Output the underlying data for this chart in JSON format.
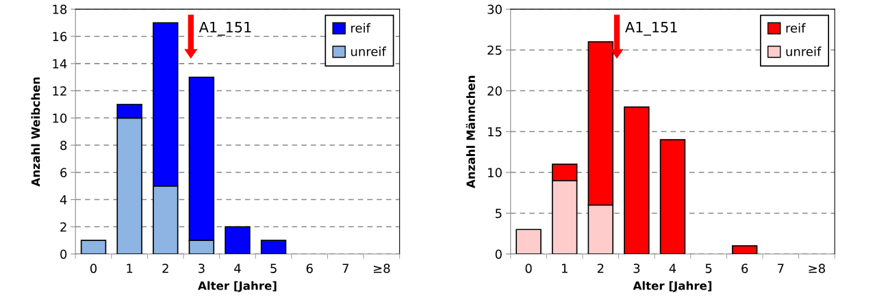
{
  "chart_data": [
    {
      "type": "bar",
      "stacked": true,
      "categories": [
        "0",
        "1",
        "2",
        "3",
        "4",
        "5",
        "6",
        "7",
        "≥8"
      ],
      "xlabel": "Alter [Jahre]",
      "ylabel": "Anzahl Weibchen",
      "series": [
        {
          "name": "unreif",
          "color": "#8db4e2",
          "values": [
            1,
            10,
            5,
            1,
            0,
            0,
            0,
            0,
            0
          ]
        },
        {
          "name": "reif",
          "color": "#0000ff",
          "values": [
            0,
            1,
            12,
            12,
            2,
            1,
            0,
            0,
            0
          ]
        }
      ],
      "ylim": [
        0,
        18
      ],
      "yticks": [
        0,
        2,
        4,
        6,
        8,
        10,
        12,
        14,
        16,
        18
      ],
      "grid": "y",
      "legend": "top right",
      "annotations": [
        "A1_151"
      ]
    },
    {
      "type": "bar",
      "stacked": true,
      "categories": [
        "0",
        "1",
        "2",
        "3",
        "4",
        "5",
        "6",
        "7",
        "≥8"
      ],
      "xlabel": "Alter [Jahre]",
      "ylabel": "Anzahl Männchen",
      "series": [
        {
          "name": "unreif",
          "color": "#ffcccc",
          "values": [
            3,
            9,
            6,
            0,
            0,
            0,
            0,
            0,
            0
          ]
        },
        {
          "name": "reif",
          "color": "#ff0000",
          "values": [
            0,
            2,
            20,
            18,
            14,
            0,
            1,
            0,
            0
          ]
        }
      ],
      "ylim": [
        0,
        30
      ],
      "yticks": [
        0,
        5,
        10,
        15,
        20,
        25,
        30
      ],
      "grid": "y",
      "legend": "top right",
      "annotations": [
        "A1_151"
      ]
    }
  ]
}
